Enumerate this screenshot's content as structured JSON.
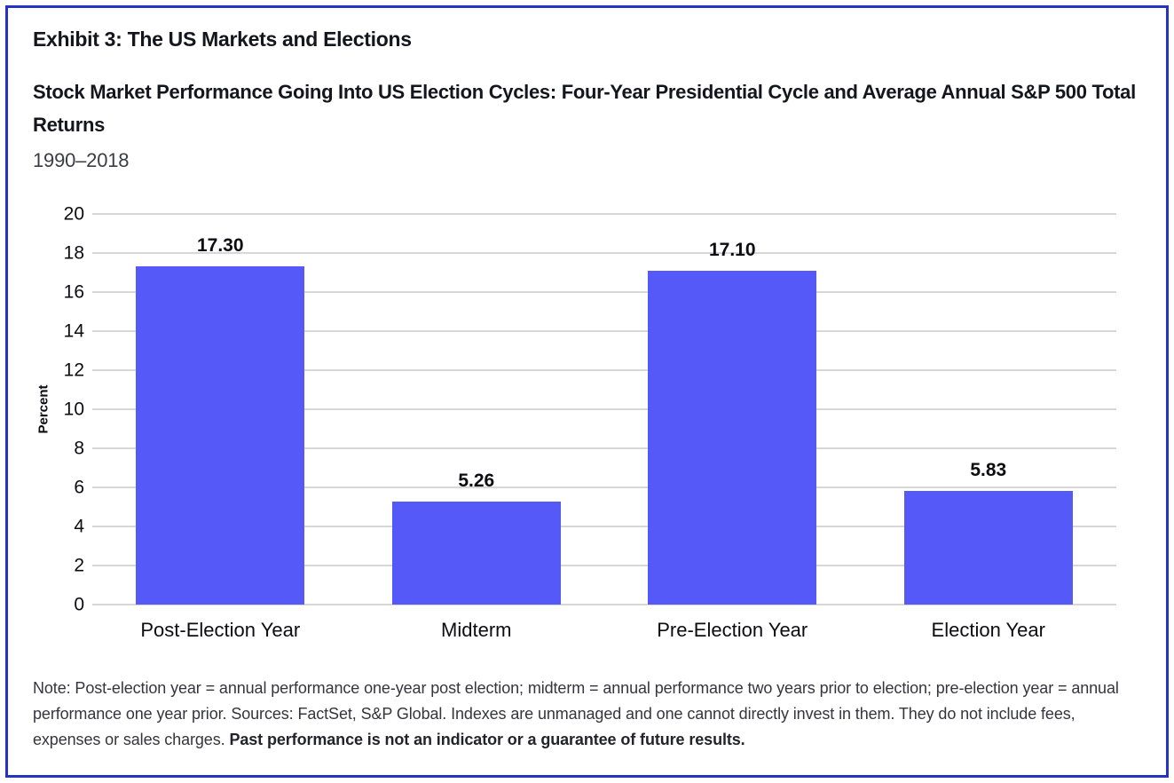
{
  "header": {
    "exhibit_title": "Exhibit 3: The US Markets and Elections",
    "subtitle": "Stock Market Performance Going Into US Election Cycles: Four-Year Presidential Cycle and Average Annual S&P 500 Total Returns",
    "period": "1990–2018"
  },
  "chart_data": {
    "type": "bar",
    "title": "Stock Market Performance Going Into US Election Cycles: Four-Year Presidential Cycle and Average Annual S&P 500 Total Returns",
    "subtitle": "1990–2018",
    "categories": [
      "Post-Election Year",
      "Midterm",
      "Pre-Election Year",
      "Election Year"
    ],
    "values": [
      17.3,
      5.26,
      17.1,
      5.83
    ],
    "value_labels": [
      "17.30",
      "5.26",
      "17.10",
      "5.83"
    ],
    "xlabel": "",
    "ylabel": "Percent",
    "ylim": [
      0,
      20
    ],
    "yticks": [
      0,
      2,
      4,
      6,
      8,
      10,
      12,
      14,
      16,
      18,
      20
    ],
    "grid": true,
    "legend": false,
    "bar_color": "#5559F8",
    "gridline_color": "#D7D7D7"
  },
  "note": {
    "text": "Note: Post-election year = annual performance one-year post election; midterm = annual performance two years prior to election; pre-election year = annual performance one year prior. Sources: FactSet, S&P Global. Indexes are unmanaged and one cannot directly invest in them. They do not include fees, expenses or sales charges.",
    "bold_text": "Past performance is not an indicator or a guarantee of future results."
  },
  "colors": {
    "border": "#2433C4",
    "bar": "#5559F8",
    "gridline": "#D7D7D7",
    "text_primary": "#15151E",
    "text_note": "#35353D"
  }
}
